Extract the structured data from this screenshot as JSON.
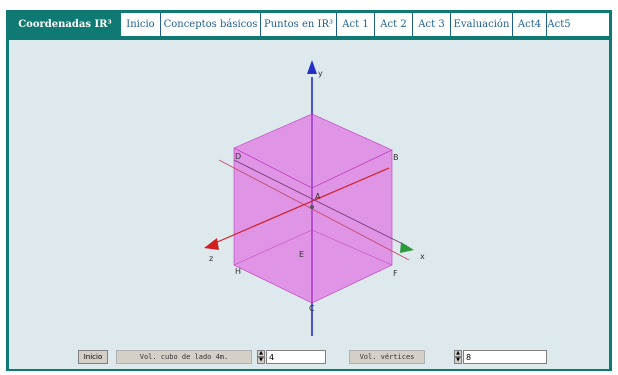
{
  "tabs": [
    {
      "id": "coordenadas",
      "label": "Coordenadas IR³",
      "active": true
    },
    {
      "id": "inicio",
      "label": "Inicio",
      "active": false
    },
    {
      "id": "conceptos",
      "label": "Conceptos básicos",
      "active": false
    },
    {
      "id": "puntos",
      "label": "Puntos en IR³",
      "active": false
    },
    {
      "id": "act1",
      "label": "Act 1",
      "active": false
    },
    {
      "id": "act2",
      "label": "Act 2",
      "active": false
    },
    {
      "id": "act3",
      "label": "Act 3",
      "active": false
    },
    {
      "id": "evaluacion",
      "label": "Evaluación",
      "active": false
    },
    {
      "id": "act4",
      "label": "Act4",
      "active": false
    },
    {
      "id": "act5",
      "label": "Act5",
      "active": false
    }
  ],
  "scene": {
    "axis_labels": {
      "x": "x",
      "y": "y",
      "z": "z"
    },
    "vertex_labels": [
      "D",
      "B",
      "A",
      "E",
      "F",
      "H",
      "C"
    ],
    "colors": {
      "cube": "#e04ee0",
      "x_axis": "#2c9a3c",
      "y_axis": "#2230c8",
      "z_axis": "#d02020",
      "background": "#dde9ec",
      "frame": "#0e7a73"
    }
  },
  "controls": {
    "button_label": "Inicio",
    "side_label": "Vol. cubo de lado 4m.",
    "side_value": "4",
    "vertices_label": "Vol. vértices",
    "vertices_value": "8"
  }
}
